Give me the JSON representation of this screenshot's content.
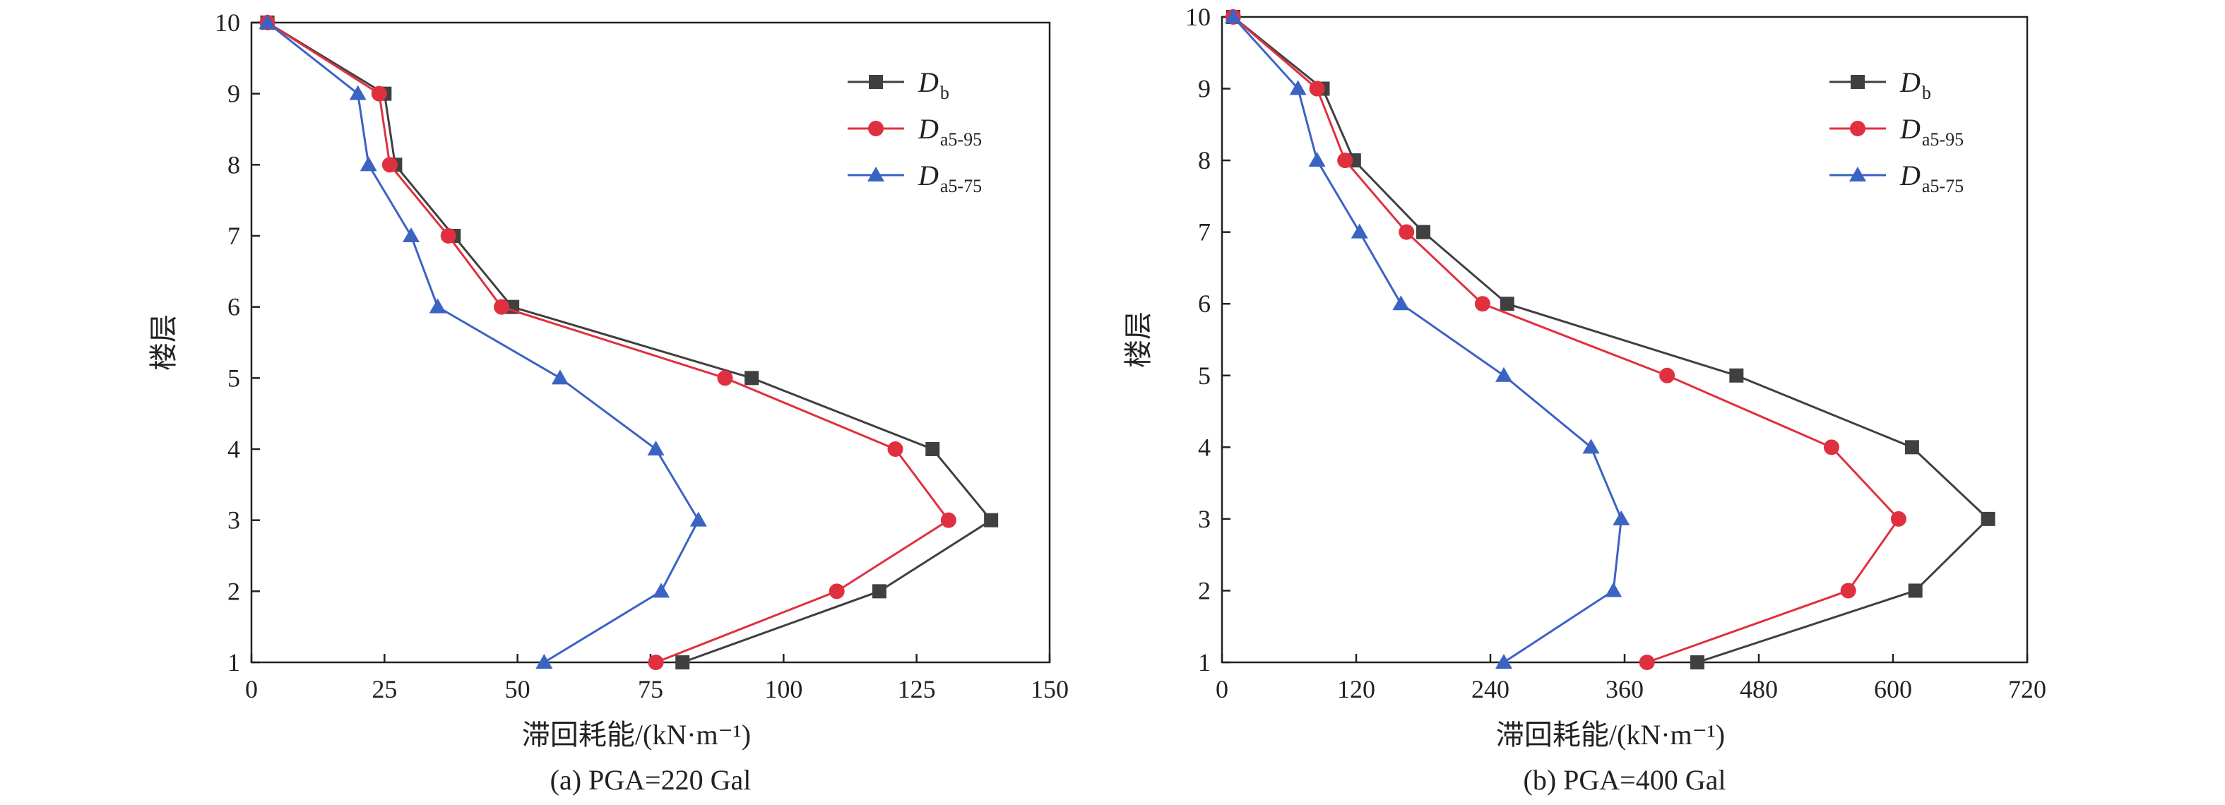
{
  "chart_data": [
    {
      "type": "line",
      "caption": "(a) PGA=220 Gal",
      "xlabel": "滞回耗能/(kN·m⁻¹)",
      "ylabel": "楼层",
      "xlim": [
        0,
        150
      ],
      "ylim": [
        1,
        10
      ],
      "xticks": [
        0,
        25,
        50,
        75,
        100,
        125,
        150
      ],
      "yticks": [
        1,
        2,
        3,
        4,
        5,
        6,
        7,
        8,
        9,
        10
      ],
      "legend_position": "top-right",
      "series": [
        {
          "name": "D",
          "sub": "b",
          "color": "#404040",
          "marker": "square",
          "points": [
            [
              3,
              10
            ],
            [
              25,
              9
            ],
            [
              27,
              8
            ],
            [
              38,
              7
            ],
            [
              49,
              6
            ],
            [
              94,
              5
            ],
            [
              128,
              4
            ],
            [
              139,
              3
            ],
            [
              118,
              2
            ],
            [
              81,
              1
            ]
          ]
        },
        {
          "name": "D",
          "sub": "a5-95",
          "color": "#e03040",
          "marker": "circle",
          "points": [
            [
              3,
              10
            ],
            [
              24,
              9
            ],
            [
              26,
              8
            ],
            [
              37,
              7
            ],
            [
              47,
              6
            ],
            [
              89,
              5
            ],
            [
              121,
              4
            ],
            [
              131,
              3
            ],
            [
              110,
              2
            ],
            [
              76,
              1
            ]
          ]
        },
        {
          "name": "D",
          "sub": "a5-75",
          "color": "#3b63c4",
          "marker": "triangle",
          "points": [
            [
              3,
              10
            ],
            [
              20,
              9
            ],
            [
              22,
              8
            ],
            [
              30,
              7
            ],
            [
              35,
              6
            ],
            [
              58,
              5
            ],
            [
              76,
              4
            ],
            [
              84,
              3
            ],
            [
              77,
              2
            ],
            [
              55,
              1
            ]
          ]
        }
      ]
    },
    {
      "type": "line",
      "caption": "(b) PGA=400 Gal",
      "xlabel": "滞回耗能/(kN·m⁻¹)",
      "ylabel": "楼层",
      "xlim": [
        0,
        720
      ],
      "ylim": [
        1,
        10
      ],
      "xticks": [
        0,
        120,
        240,
        360,
        480,
        600,
        720
      ],
      "yticks": [
        1,
        2,
        3,
        4,
        5,
        6,
        7,
        8,
        9,
        10
      ],
      "legend_position": "top-right",
      "series": [
        {
          "name": "D",
          "sub": "b",
          "color": "#404040",
          "marker": "square",
          "points": [
            [
              10,
              10
            ],
            [
              90,
              9
            ],
            [
              118,
              8
            ],
            [
              180,
              7
            ],
            [
              255,
              6
            ],
            [
              460,
              5
            ],
            [
              617,
              4
            ],
            [
              685,
              3
            ],
            [
              620,
              2
            ],
            [
              425,
              1
            ]
          ]
        },
        {
          "name": "D",
          "sub": "a5-95",
          "color": "#e03040",
          "marker": "circle",
          "points": [
            [
              10,
              10
            ],
            [
              85,
              9
            ],
            [
              110,
              8
            ],
            [
              165,
              7
            ],
            [
              233,
              6
            ],
            [
              398,
              5
            ],
            [
              545,
              4
            ],
            [
              605,
              3
            ],
            [
              560,
              2
            ],
            [
              380,
              1
            ]
          ]
        },
        {
          "name": "D",
          "sub": "a5-75",
          "color": "#3b63c4",
          "marker": "triangle",
          "points": [
            [
              10,
              10
            ],
            [
              68,
              9
            ],
            [
              85,
              8
            ],
            [
              123,
              7
            ],
            [
              160,
              6
            ],
            [
              252,
              5
            ],
            [
              330,
              4
            ],
            [
              357,
              3
            ],
            [
              350,
              2
            ],
            [
              252,
              1
            ]
          ]
        }
      ]
    }
  ]
}
